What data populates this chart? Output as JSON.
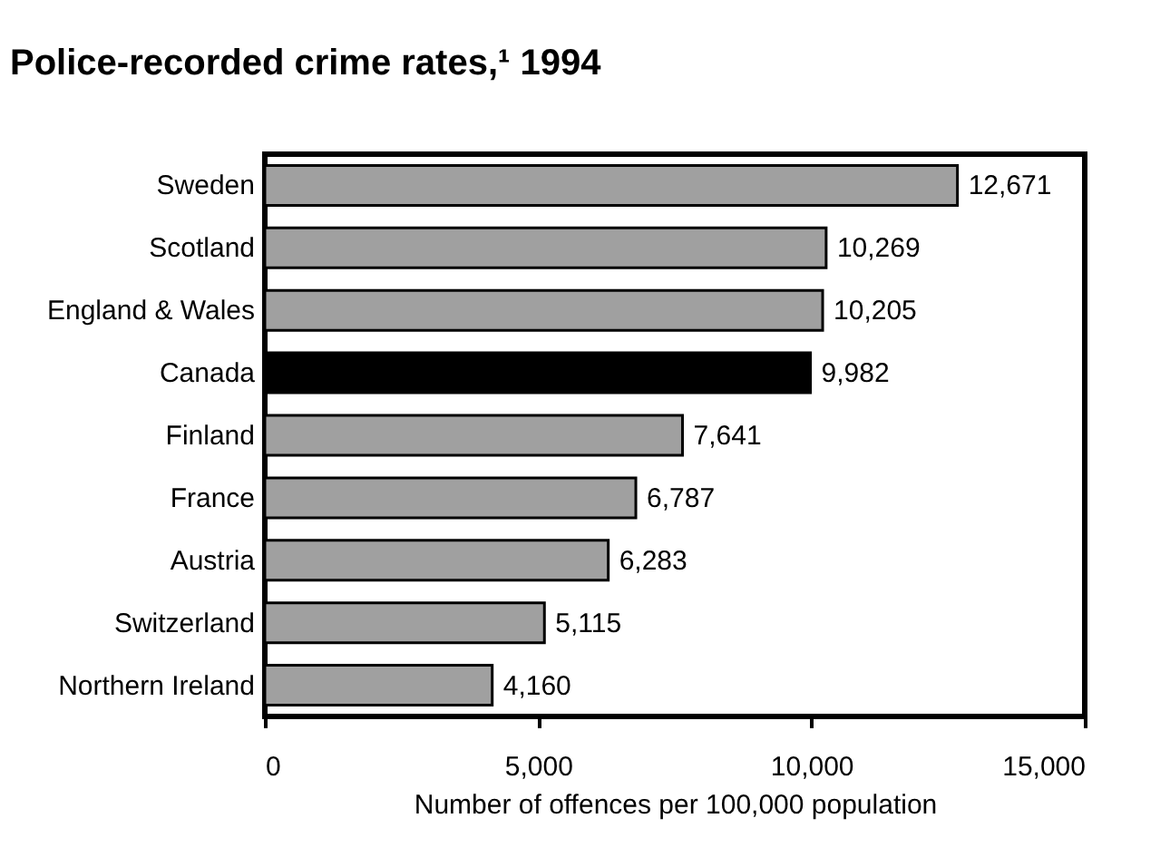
{
  "chart_data": {
    "type": "bar",
    "orientation": "horizontal",
    "title": "Police-recorded crime rates,¹ 1994",
    "xlabel": "Number of offences per 100,000 population",
    "categories": [
      "Sweden",
      "Scotland",
      "England & Wales",
      "Canada",
      "Finland",
      "France",
      "Austria",
      "Switzerland",
      "Northern Ireland"
    ],
    "values": [
      12671,
      10269,
      10205,
      9982,
      7641,
      6787,
      6283,
      5115,
      4160
    ],
    "value_labels": [
      "12,671",
      "10,269",
      "10,205",
      "9,982",
      "7,641",
      "6,787",
      "6,283",
      "5,115",
      "4,160"
    ],
    "colors": [
      "#a0a0a0",
      "#a0a0a0",
      "#a0a0a0",
      "#000000",
      "#a0a0a0",
      "#a0a0a0",
      "#a0a0a0",
      "#a0a0a0",
      "#a0a0a0"
    ],
    "xlim": [
      0,
      15000
    ],
    "xticks": [
      0,
      {
        "value": 5000,
        "label": "5,000"
      },
      {
        "value": 10000,
        "label": "10,000"
      },
      {
        "value": 15000,
        "label": "15,000"
      }
    ],
    "grid": false
  }
}
